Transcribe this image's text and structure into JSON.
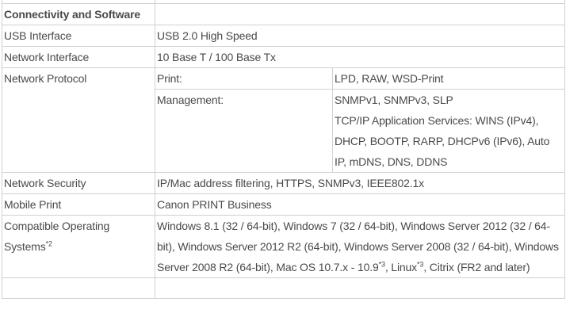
{
  "section_header": "Connectivity and Software",
  "rows": [
    {
      "label": "USB Interface",
      "value": "USB 2.0 High Speed"
    },
    {
      "label": "Network Interface",
      "value": "10 Base T / 100 Base Tx"
    },
    {
      "label": "Network Protocol",
      "sub": [
        {
          "label": "Print:",
          "value": "LPD, RAW, WSD-Print"
        },
        {
          "label": "Management:",
          "value_line1": "SNMPv1, SNMPv3, SLP",
          "value_line2": "TCP/IP Application Services: WINS (IPv4), DHCP, BOOTP, RARP, DHCPv6 (IPv6), Auto IP, mDNS, DNS, DDNS"
        }
      ]
    },
    {
      "label": "Network Security",
      "value": "IP/Mac address filtering, HTTPS, SNMPv3, IEEE802.1x"
    },
    {
      "label": "Mobile Print",
      "value": "Canon PRINT Business"
    },
    {
      "label": "Compatible Operating Systems",
      "label_sup": "*2",
      "value_parts": [
        "Windows 8.1 (32 / 64-bit), Windows 7 (32 / 64-bit), Windows Server 2012 (32 / 64-bit), Windows Server 2012 R2 (64-bit), Windows Server 2008 (32 / 64-bit), Windows Server 2008 R2 (64-bit), Mac OS 10.7.x - 10.9",
        "*3",
        ", Linux",
        "*3",
        ", Citrix (FR2 and later)"
      ]
    }
  ]
}
